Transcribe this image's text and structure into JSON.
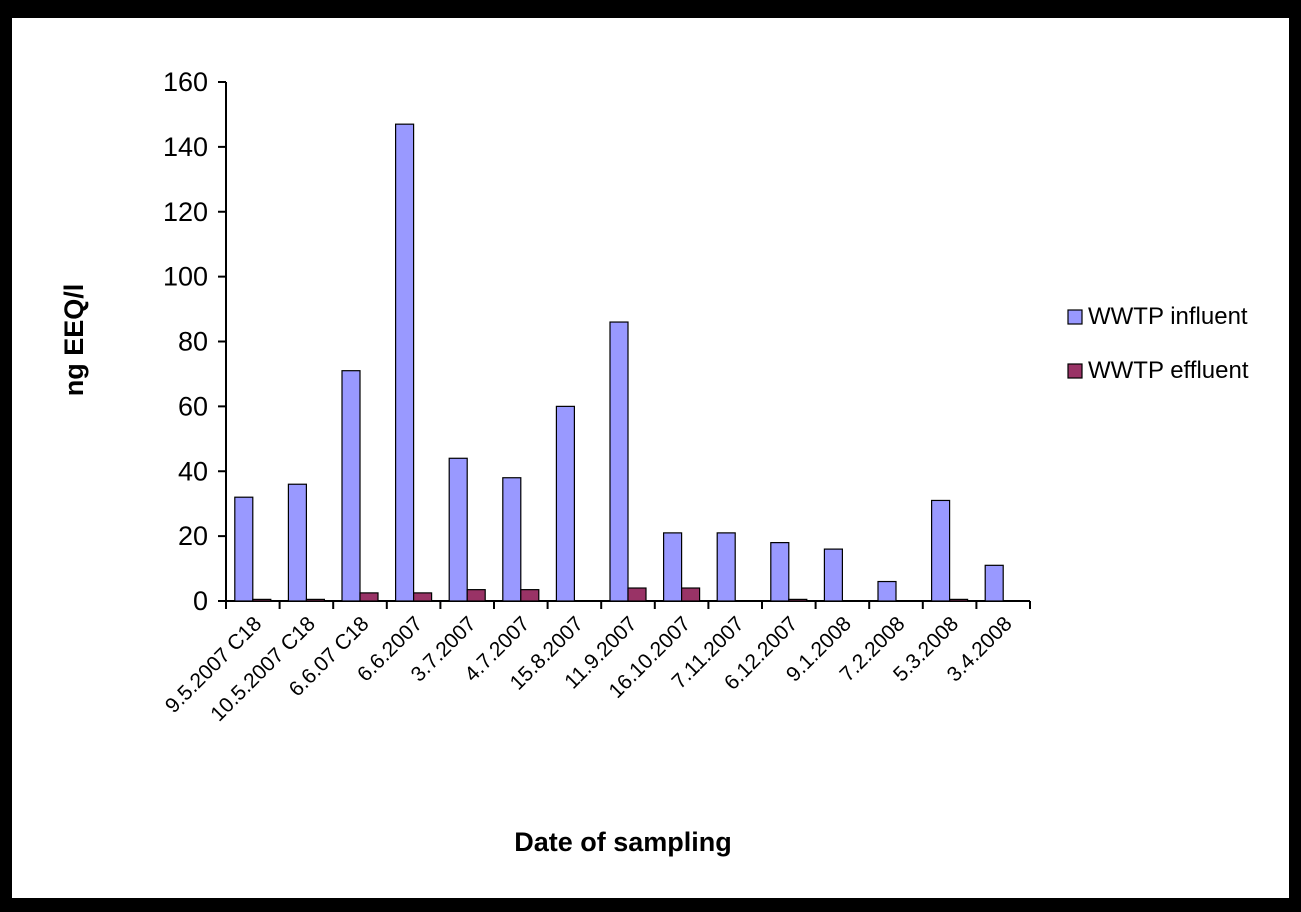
{
  "chart_data": {
    "type": "bar",
    "xlabel": "Date of sampling",
    "ylabel": "ng EEQ/l",
    "ylim": [
      0,
      160
    ],
    "yticks": [
      0,
      20,
      40,
      60,
      80,
      100,
      120,
      140,
      160
    ],
    "grid": false,
    "legend_position": "right",
    "categories": [
      "9.5.2007 C18",
      "10.5.2007 C18",
      "6.6.07 C18",
      "6.6.2007",
      "3.7.2007",
      "4.7.2007",
      "15.8.2007",
      "11.9.2007",
      "16.10.2007",
      "7.11.2007",
      "6.12.2007",
      "9.1.2008",
      "7.2.2008",
      "5.3.2008",
      "3.4.2008"
    ],
    "series": [
      {
        "name": "WWTP influent",
        "color": "#9999ff",
        "values": [
          32,
          36,
          71,
          147,
          44,
          38,
          60,
          86,
          21,
          21,
          18,
          16,
          6,
          31,
          11
        ]
      },
      {
        "name": "WWTP effluent",
        "color": "#993366",
        "values": [
          0.5,
          0.5,
          2.5,
          2.5,
          3.5,
          3.5,
          0,
          4,
          4,
          0,
          0.5,
          0,
          0,
          0.5,
          0
        ]
      }
    ]
  }
}
